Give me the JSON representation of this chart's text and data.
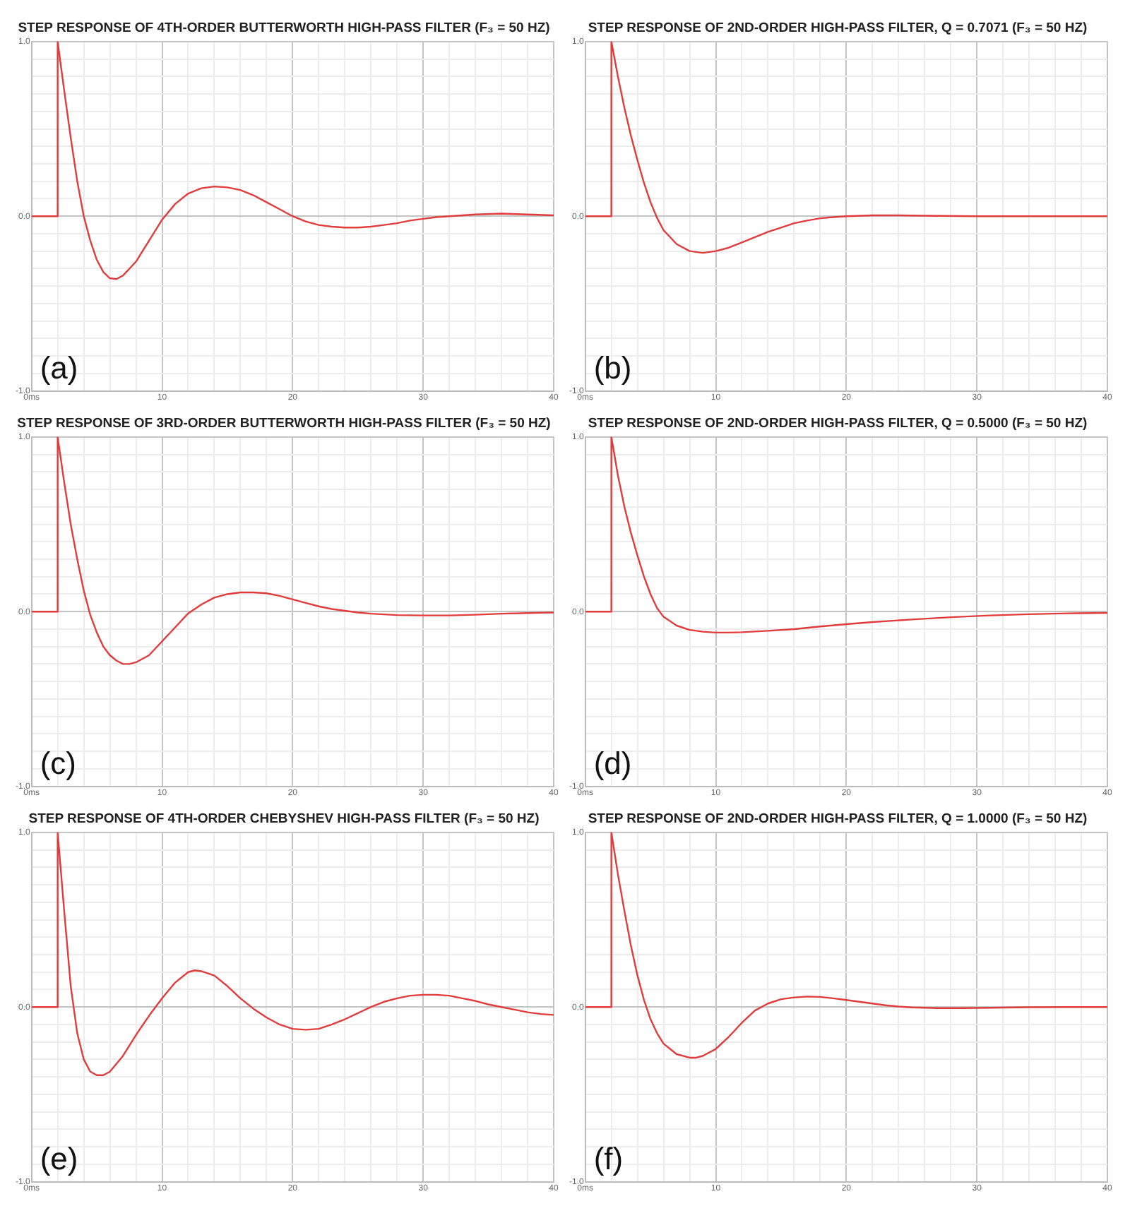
{
  "chart_data": [
    {
      "type": "line",
      "title": "STEP RESPONSE OF 4TH-ORDER BUTTERWORTH HIGH-PASS FILTER (F₃ = 50 HZ)",
      "annotations": [
        "(a)"
      ],
      "grid": true,
      "xlim": [
        0,
        40
      ],
      "ylim": [
        -1,
        1
      ],
      "xticks": [
        {
          "value": 0,
          "label": "0ms"
        },
        {
          "value": 2,
          "label": null
        },
        {
          "value": 4,
          "label": null
        },
        {
          "value": 6,
          "label": null
        },
        {
          "value": 8,
          "label": null
        },
        10,
        {
          "value": 12,
          "label": null
        },
        {
          "value": 14,
          "label": null
        },
        {
          "value": 16,
          "label": null
        },
        {
          "value": 18,
          "label": null
        },
        20,
        {
          "value": 22,
          "label": null
        },
        {
          "value": 24,
          "label": null
        },
        {
          "value": 26,
          "label": null
        },
        {
          "value": 28,
          "label": null
        },
        30,
        {
          "value": 32,
          "label": null
        },
        {
          "value": 34,
          "label": null
        },
        {
          "value": 36,
          "label": null
        },
        {
          "value": 38,
          "label": null
        },
        40
      ],
      "yticks": [
        {
          "value": -1,
          "label": "-1.0"
        },
        {
          "value": -0.9,
          "label": null
        },
        {
          "value": -0.8,
          "label": null
        },
        {
          "value": -0.7,
          "label": null
        },
        {
          "value": -0.6,
          "label": null
        },
        {
          "value": -0.5,
          "label": null
        },
        {
          "value": -0.4,
          "label": null
        },
        {
          "value": -0.3,
          "label": null
        },
        {
          "value": -0.2,
          "label": null
        },
        {
          "value": -0.1,
          "label": null
        },
        {
          "value": 0,
          "label": "0.0"
        },
        {
          "value": 0.1,
          "label": null
        },
        {
          "value": 0.2,
          "label": null
        },
        {
          "value": 0.3,
          "label": null
        },
        {
          "value": 0.4,
          "label": null
        },
        {
          "value": 0.5,
          "label": null
        },
        {
          "value": 0.6,
          "label": null
        },
        {
          "value": 0.7,
          "label": null
        },
        {
          "value": 0.8,
          "label": null
        },
        {
          "value": 0.9,
          "label": null
        },
        {
          "value": 1,
          "label": "1.0"
        }
      ],
      "x": [
        0,
        2,
        2,
        2.5,
        3,
        3.5,
        4,
        4.5,
        5,
        5.5,
        6,
        6.5,
        7,
        8,
        9,
        10,
        11,
        12,
        13,
        14,
        15,
        16,
        17,
        18,
        19,
        20,
        21,
        22,
        23,
        24,
        25,
        26,
        27,
        28,
        29,
        30,
        31,
        32,
        34,
        36,
        38,
        40
      ],
      "series": [
        {
          "color": "#e03c3c",
          "values": [
            0,
            0,
            1,
            0.72,
            0.45,
            0.2,
            0.0,
            -0.14,
            -0.25,
            -0.32,
            -0.355,
            -0.36,
            -0.34,
            -0.26,
            -0.14,
            -0.02,
            0.07,
            0.13,
            0.16,
            0.17,
            0.165,
            0.15,
            0.12,
            0.08,
            0.04,
            0.0,
            -0.03,
            -0.05,
            -0.06,
            -0.065,
            -0.065,
            -0.06,
            -0.05,
            -0.04,
            -0.025,
            -0.015,
            -0.005,
            0.0,
            0.01,
            0.015,
            0.01,
            0.005
          ]
        }
      ]
    },
    {
      "type": "line",
      "title": "STEP RESPONSE OF 2ND-ORDER HIGH-PASS FILTER, Q = 0.7071 (F₃ = 50 HZ)",
      "annotations": [
        "(b)"
      ],
      "grid": true,
      "xlim": [
        0,
        40
      ],
      "ylim": [
        -1,
        1
      ],
      "xticks": [
        {
          "value": 0,
          "label": "0ms"
        },
        {
          "value": 2,
          "label": null
        },
        {
          "value": 4,
          "label": null
        },
        {
          "value": 6,
          "label": null
        },
        {
          "value": 8,
          "label": null
        },
        10,
        {
          "value": 12,
          "label": null
        },
        {
          "value": 14,
          "label": null
        },
        {
          "value": 16,
          "label": null
        },
        {
          "value": 18,
          "label": null
        },
        20,
        {
          "value": 22,
          "label": null
        },
        {
          "value": 24,
          "label": null
        },
        {
          "value": 26,
          "label": null
        },
        {
          "value": 28,
          "label": null
        },
        30,
        {
          "value": 32,
          "label": null
        },
        {
          "value": 34,
          "label": null
        },
        {
          "value": 36,
          "label": null
        },
        {
          "value": 38,
          "label": null
        },
        40
      ],
      "yticks": [
        {
          "value": -1,
          "label": "-1.0"
        },
        {
          "value": -0.9,
          "label": null
        },
        {
          "value": -0.8,
          "label": null
        },
        {
          "value": -0.7,
          "label": null
        },
        {
          "value": -0.6,
          "label": null
        },
        {
          "value": -0.5,
          "label": null
        },
        {
          "value": -0.4,
          "label": null
        },
        {
          "value": -0.3,
          "label": null
        },
        {
          "value": -0.2,
          "label": null
        },
        {
          "value": -0.1,
          "label": null
        },
        {
          "value": 0,
          "label": "0.0"
        },
        {
          "value": 0.1,
          "label": null
        },
        {
          "value": 0.2,
          "label": null
        },
        {
          "value": 0.3,
          "label": null
        },
        {
          "value": 0.4,
          "label": null
        },
        {
          "value": 0.5,
          "label": null
        },
        {
          "value": 0.6,
          "label": null
        },
        {
          "value": 0.7,
          "label": null
        },
        {
          "value": 0.8,
          "label": null
        },
        {
          "value": 0.9,
          "label": null
        },
        {
          "value": 1,
          "label": "1.0"
        }
      ],
      "x": [
        0,
        2,
        2,
        2.5,
        3,
        3.5,
        4,
        4.5,
        5,
        5.5,
        6,
        7,
        8,
        9,
        10,
        11,
        12,
        13,
        14,
        15,
        16,
        17,
        18,
        19,
        20,
        22,
        24,
        26,
        30,
        40
      ],
      "series": [
        {
          "color": "#e03c3c",
          "values": [
            0,
            0,
            1,
            0.8,
            0.62,
            0.46,
            0.32,
            0.19,
            0.08,
            -0.01,
            -0.08,
            -0.16,
            -0.2,
            -0.21,
            -0.2,
            -0.18,
            -0.15,
            -0.12,
            -0.09,
            -0.065,
            -0.04,
            -0.025,
            -0.012,
            -0.005,
            0,
            0.005,
            0.005,
            0.003,
            0,
            0
          ]
        }
      ]
    },
    {
      "type": "line",
      "title": "STEP RESPONSE OF 3RD-ORDER BUTTERWORTH HIGH-PASS FILTER (F₃ = 50 HZ)",
      "annotations": [
        "(c)"
      ],
      "grid": true,
      "xlim": [
        0,
        40
      ],
      "ylim": [
        -1,
        1
      ],
      "xticks": [
        {
          "value": 0,
          "label": "0ms"
        },
        {
          "value": 2,
          "label": null
        },
        {
          "value": 4,
          "label": null
        },
        {
          "value": 6,
          "label": null
        },
        {
          "value": 8,
          "label": null
        },
        10,
        {
          "value": 12,
          "label": null
        },
        {
          "value": 14,
          "label": null
        },
        {
          "value": 16,
          "label": null
        },
        {
          "value": 18,
          "label": null
        },
        20,
        {
          "value": 22,
          "label": null
        },
        {
          "value": 24,
          "label": null
        },
        {
          "value": 26,
          "label": null
        },
        {
          "value": 28,
          "label": null
        },
        30,
        {
          "value": 32,
          "label": null
        },
        {
          "value": 34,
          "label": null
        },
        {
          "value": 36,
          "label": null
        },
        {
          "value": 38,
          "label": null
        },
        40
      ],
      "yticks": [
        {
          "value": -1,
          "label": "-1.0"
        },
        {
          "value": -0.9,
          "label": null
        },
        {
          "value": -0.8,
          "label": null
        },
        {
          "value": -0.7,
          "label": null
        },
        {
          "value": -0.6,
          "label": null
        },
        {
          "value": -0.5,
          "label": null
        },
        {
          "value": -0.4,
          "label": null
        },
        {
          "value": -0.3,
          "label": null
        },
        {
          "value": -0.2,
          "label": null
        },
        {
          "value": -0.1,
          "label": null
        },
        {
          "value": 0,
          "label": "0.0"
        },
        {
          "value": 0.1,
          "label": null
        },
        {
          "value": 0.2,
          "label": null
        },
        {
          "value": 0.3,
          "label": null
        },
        {
          "value": 0.4,
          "label": null
        },
        {
          "value": 0.5,
          "label": null
        },
        {
          "value": 0.6,
          "label": null
        },
        {
          "value": 0.7,
          "label": null
        },
        {
          "value": 0.8,
          "label": null
        },
        {
          "value": 0.9,
          "label": null
        },
        {
          "value": 1,
          "label": "1.0"
        }
      ],
      "x": [
        0,
        2,
        2,
        2.5,
        3,
        3.5,
        4,
        4.5,
        5,
        5.5,
        6,
        6.5,
        7,
        7.5,
        8,
        9,
        10,
        11,
        12,
        13,
        14,
        15,
        16,
        17,
        18,
        19,
        20,
        21,
        22,
        23,
        24,
        25,
        26,
        28,
        30,
        32,
        34,
        36,
        38,
        40
      ],
      "series": [
        {
          "color": "#e03c3c",
          "values": [
            0,
            0,
            1,
            0.74,
            0.5,
            0.3,
            0.12,
            -0.02,
            -0.12,
            -0.2,
            -0.25,
            -0.28,
            -0.3,
            -0.3,
            -0.29,
            -0.25,
            -0.17,
            -0.09,
            -0.01,
            0.04,
            0.08,
            0.1,
            0.11,
            0.11,
            0.105,
            0.09,
            0.07,
            0.05,
            0.03,
            0.015,
            0.005,
            -0.005,
            -0.012,
            -0.02,
            -0.022,
            -0.022,
            -0.018,
            -0.012,
            -0.008,
            -0.005
          ]
        }
      ]
    },
    {
      "type": "line",
      "title": "STEP RESPONSE OF 2ND-ORDER HIGH-PASS FILTER, Q = 0.5000 (F₃ = 50 HZ)",
      "annotations": [
        "(d)"
      ],
      "grid": true,
      "xlim": [
        0,
        40
      ],
      "ylim": [
        -1,
        1
      ],
      "xticks": [
        {
          "value": 0,
          "label": "0ms"
        },
        {
          "value": 2,
          "label": null
        },
        {
          "value": 4,
          "label": null
        },
        {
          "value": 6,
          "label": null
        },
        {
          "value": 8,
          "label": null
        },
        10,
        {
          "value": 12,
          "label": null
        },
        {
          "value": 14,
          "label": null
        },
        {
          "value": 16,
          "label": null
        },
        {
          "value": 18,
          "label": null
        },
        20,
        {
          "value": 22,
          "label": null
        },
        {
          "value": 24,
          "label": null
        },
        {
          "value": 26,
          "label": null
        },
        {
          "value": 28,
          "label": null
        },
        30,
        {
          "value": 32,
          "label": null
        },
        {
          "value": 34,
          "label": null
        },
        {
          "value": 36,
          "label": null
        },
        {
          "value": 38,
          "label": null
        },
        40
      ],
      "yticks": [
        {
          "value": -1,
          "label": "-1.0"
        },
        {
          "value": -0.9,
          "label": null
        },
        {
          "value": -0.8,
          "label": null
        },
        {
          "value": -0.7,
          "label": null
        },
        {
          "value": -0.6,
          "label": null
        },
        {
          "value": -0.5,
          "label": null
        },
        {
          "value": -0.4,
          "label": null
        },
        {
          "value": -0.3,
          "label": null
        },
        {
          "value": -0.2,
          "label": null
        },
        {
          "value": -0.1,
          "label": null
        },
        {
          "value": 0,
          "label": "0.0"
        },
        {
          "value": 0.1,
          "label": null
        },
        {
          "value": 0.2,
          "label": null
        },
        {
          "value": 0.3,
          "label": null
        },
        {
          "value": 0.4,
          "label": null
        },
        {
          "value": 0.5,
          "label": null
        },
        {
          "value": 0.6,
          "label": null
        },
        {
          "value": 0.7,
          "label": null
        },
        {
          "value": 0.8,
          "label": null
        },
        {
          "value": 0.9,
          "label": null
        },
        {
          "value": 1,
          "label": "1.0"
        }
      ],
      "x": [
        0,
        2,
        2,
        2.5,
        3,
        3.5,
        4,
        4.5,
        5,
        5.5,
        6,
        7,
        8,
        9,
        10,
        11,
        12,
        14,
        16,
        18,
        20,
        22,
        25,
        28,
        31,
        34,
        37,
        40
      ],
      "series": [
        {
          "color": "#e03c3c",
          "values": [
            0,
            0,
            1,
            0.78,
            0.6,
            0.45,
            0.32,
            0.2,
            0.1,
            0.02,
            -0.03,
            -0.08,
            -0.105,
            -0.115,
            -0.12,
            -0.12,
            -0.118,
            -0.11,
            -0.1,
            -0.085,
            -0.072,
            -0.06,
            -0.045,
            -0.032,
            -0.022,
            -0.015,
            -0.01,
            -0.007
          ]
        }
      ]
    },
    {
      "type": "line",
      "title": "STEP RESPONSE OF 4TH-ORDER CHEBYSHEV HIGH-PASS FILTER (F₃ = 50 HZ)",
      "annotations": [
        "(e)"
      ],
      "grid": true,
      "xlim": [
        0,
        40
      ],
      "ylim": [
        -1,
        1
      ],
      "xticks": [
        {
          "value": 0,
          "label": "0ms"
        },
        {
          "value": 2,
          "label": null
        },
        {
          "value": 4,
          "label": null
        },
        {
          "value": 6,
          "label": null
        },
        {
          "value": 8,
          "label": null
        },
        10,
        {
          "value": 12,
          "label": null
        },
        {
          "value": 14,
          "label": null
        },
        {
          "value": 16,
          "label": null
        },
        {
          "value": 18,
          "label": null
        },
        20,
        {
          "value": 22,
          "label": null
        },
        {
          "value": 24,
          "label": null
        },
        {
          "value": 26,
          "label": null
        },
        {
          "value": 28,
          "label": null
        },
        30,
        {
          "value": 32,
          "label": null
        },
        {
          "value": 34,
          "label": null
        },
        {
          "value": 36,
          "label": null
        },
        {
          "value": 38,
          "label": null
        },
        40
      ],
      "yticks": [
        {
          "value": -1,
          "label": "-1.0"
        },
        {
          "value": -0.9,
          "label": null
        },
        {
          "value": -0.8,
          "label": null
        },
        {
          "value": -0.7,
          "label": null
        },
        {
          "value": -0.6,
          "label": null
        },
        {
          "value": -0.5,
          "label": null
        },
        {
          "value": -0.4,
          "label": null
        },
        {
          "value": -0.3,
          "label": null
        },
        {
          "value": -0.2,
          "label": null
        },
        {
          "value": -0.1,
          "label": null
        },
        {
          "value": 0,
          "label": "0.0"
        },
        {
          "value": 0.1,
          "label": null
        },
        {
          "value": 0.2,
          "label": null
        },
        {
          "value": 0.3,
          "label": null
        },
        {
          "value": 0.4,
          "label": null
        },
        {
          "value": 0.5,
          "label": null
        },
        {
          "value": 0.6,
          "label": null
        },
        {
          "value": 0.7,
          "label": null
        },
        {
          "value": 0.8,
          "label": null
        },
        {
          "value": 0.9,
          "label": null
        },
        {
          "value": 1,
          "label": "1.0"
        }
      ],
      "x": [
        0,
        2,
        2,
        2.5,
        3,
        3.5,
        4,
        4.5,
        5,
        5.5,
        6,
        7,
        8,
        9,
        10,
        11,
        12,
        12.5,
        13,
        14,
        15,
        16,
        17,
        18,
        19,
        20,
        21,
        22,
        23,
        24,
        25,
        26,
        27,
        28,
        29,
        30,
        31,
        32,
        33,
        34,
        35,
        36,
        37,
        38,
        39,
        40
      ],
      "series": [
        {
          "color": "#e03c3c",
          "values": [
            0,
            0,
            1,
            0.55,
            0.12,
            -0.15,
            -0.3,
            -0.37,
            -0.39,
            -0.39,
            -0.37,
            -0.28,
            -0.16,
            -0.05,
            0.05,
            0.14,
            0.2,
            0.21,
            0.205,
            0.18,
            0.12,
            0.05,
            -0.01,
            -0.06,
            -0.1,
            -0.125,
            -0.13,
            -0.125,
            -0.1,
            -0.07,
            -0.035,
            0.0,
            0.03,
            0.05,
            0.065,
            0.07,
            0.07,
            0.065,
            0.05,
            0.035,
            0.015,
            0.0,
            -0.015,
            -0.03,
            -0.04,
            -0.045
          ]
        }
      ]
    },
    {
      "type": "line",
      "title": "STEP RESPONSE OF 2ND-ORDER HIGH-PASS FILTER, Q = 1.0000 (F₃ = 50 HZ)",
      "annotations": [
        "(f)"
      ],
      "grid": true,
      "xlim": [
        0,
        40
      ],
      "ylim": [
        -1,
        1
      ],
      "xticks": [
        {
          "value": 0,
          "label": "0ms"
        },
        {
          "value": 2,
          "label": null
        },
        {
          "value": 4,
          "label": null
        },
        {
          "value": 6,
          "label": null
        },
        {
          "value": 8,
          "label": null
        },
        10,
        {
          "value": 12,
          "label": null
        },
        {
          "value": 14,
          "label": null
        },
        {
          "value": 16,
          "label": null
        },
        {
          "value": 18,
          "label": null
        },
        20,
        {
          "value": 22,
          "label": null
        },
        {
          "value": 24,
          "label": null
        },
        {
          "value": 26,
          "label": null
        },
        {
          "value": 28,
          "label": null
        },
        30,
        {
          "value": 32,
          "label": null
        },
        {
          "value": 34,
          "label": null
        },
        {
          "value": 36,
          "label": null
        },
        {
          "value": 38,
          "label": null
        },
        40
      ],
      "yticks": [
        {
          "value": -1,
          "label": "-1.0"
        },
        {
          "value": -0.9,
          "label": null
        },
        {
          "value": -0.8,
          "label": null
        },
        {
          "value": -0.7,
          "label": null
        },
        {
          "value": -0.6,
          "label": null
        },
        {
          "value": -0.5,
          "label": null
        },
        {
          "value": -0.4,
          "label": null
        },
        {
          "value": -0.3,
          "label": null
        },
        {
          "value": -0.2,
          "label": null
        },
        {
          "value": -0.1,
          "label": null
        },
        {
          "value": 0,
          "label": "0.0"
        },
        {
          "value": 0.1,
          "label": null
        },
        {
          "value": 0.2,
          "label": null
        },
        {
          "value": 0.3,
          "label": null
        },
        {
          "value": 0.4,
          "label": null
        },
        {
          "value": 0.5,
          "label": null
        },
        {
          "value": 0.6,
          "label": null
        },
        {
          "value": 0.7,
          "label": null
        },
        {
          "value": 0.8,
          "label": null
        },
        {
          "value": 0.9,
          "label": null
        },
        {
          "value": 1,
          "label": "1.0"
        }
      ],
      "x": [
        0,
        2,
        2,
        2.5,
        3,
        3.5,
        4,
        4.5,
        5,
        5.5,
        6,
        7,
        8,
        8.5,
        9,
        10,
        11,
        12,
        13,
        14,
        15,
        16,
        17,
        18,
        19,
        20,
        21,
        22,
        23,
        24,
        25,
        27,
        29,
        31,
        34,
        37,
        40
      ],
      "series": [
        {
          "color": "#e03c3c",
          "values": [
            0,
            0,
            1,
            0.76,
            0.55,
            0.35,
            0.18,
            0.04,
            -0.07,
            -0.15,
            -0.21,
            -0.27,
            -0.29,
            -0.29,
            -0.28,
            -0.24,
            -0.17,
            -0.09,
            -0.02,
            0.02,
            0.045,
            0.055,
            0.06,
            0.058,
            0.05,
            0.04,
            0.03,
            0.02,
            0.01,
            0.003,
            -0.002,
            -0.006,
            -0.006,
            -0.004,
            -0.001,
            0,
            0
          ]
        }
      ]
    }
  ]
}
